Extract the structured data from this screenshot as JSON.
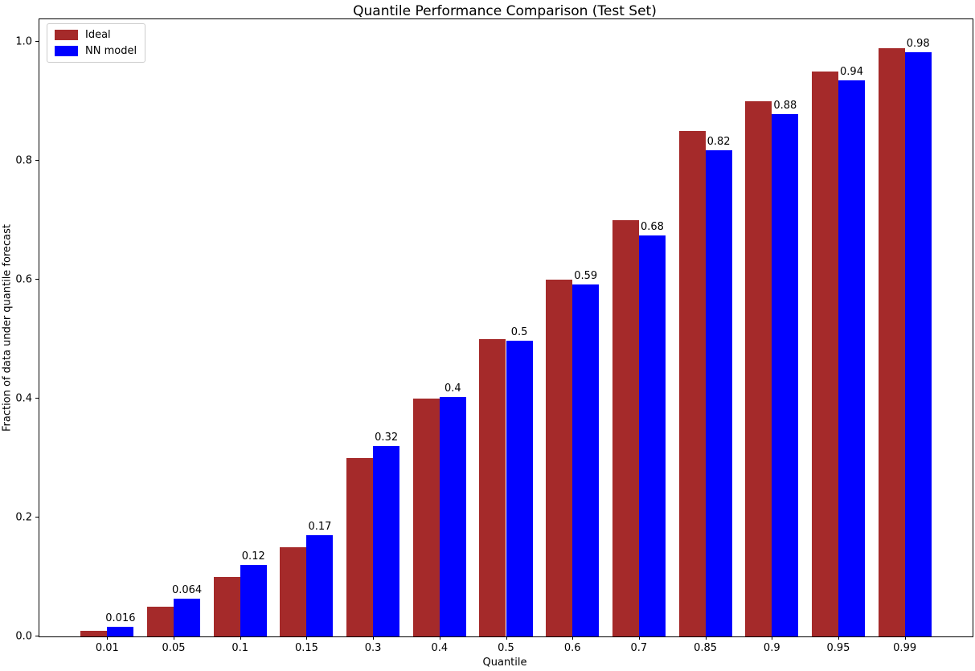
{
  "figure": {
    "title": "Quantile Performance Comparison (Test Set)",
    "xlabel": "Quantile",
    "ylabel": "Fraction of data under quantile forecast"
  },
  "legend": {
    "items": [
      {
        "label": "Ideal",
        "color": "#a52a2a"
      },
      {
        "label": "NN model",
        "color": "#0000ff"
      }
    ]
  },
  "chart_data": {
    "type": "bar",
    "title": "Quantile Performance Comparison (Test Set)",
    "xlabel": "Quantile",
    "ylabel": "Fraction of data under quantile forecast",
    "categories": [
      "0.01",
      "0.05",
      "0.1",
      "0.15",
      "0.3",
      "0.4",
      "0.5",
      "0.6",
      "0.7",
      "0.85",
      "0.9",
      "0.95",
      "0.99"
    ],
    "series": [
      {
        "name": "Ideal",
        "color": "#a52a2a",
        "values": [
          0.01,
          0.05,
          0.1,
          0.15,
          0.3,
          0.4,
          0.5,
          0.6,
          0.7,
          0.85,
          0.9,
          0.95,
          0.99
        ]
      },
      {
        "name": "NN model",
        "color": "#0000ff",
        "values": [
          0.016,
          0.064,
          0.12,
          0.17,
          0.32,
          0.403,
          0.497,
          0.592,
          0.675,
          0.818,
          0.879,
          0.935,
          0.983
        ]
      }
    ],
    "bar_labels": [
      "0.016",
      "0.064",
      "0.12",
      "0.17",
      "0.32",
      "0.4",
      "0.5",
      "0.59",
      "0.68",
      "0.82",
      "0.88",
      "0.94",
      "0.98"
    ],
    "yticks": [
      "0.0",
      "0.2",
      "0.4",
      "0.6",
      "0.8",
      "1.0"
    ],
    "ylim": [
      0,
      1.038
    ],
    "legend_position": "upper left",
    "grid": false
  }
}
